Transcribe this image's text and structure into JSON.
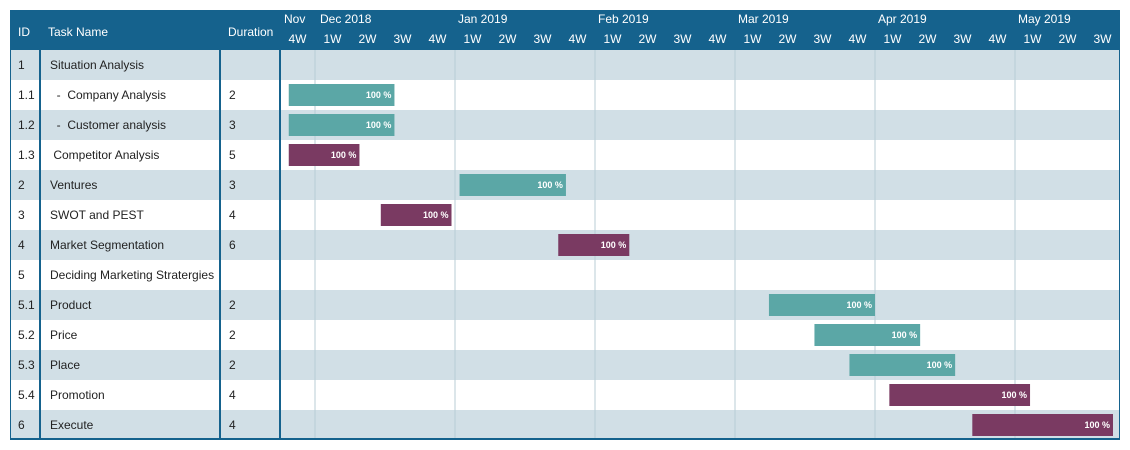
{
  "chart_data": {
    "type": "gantt",
    "columns": {
      "id": "ID",
      "task": "Task Name",
      "duration": "Duration"
    },
    "months": [
      "Nov",
      "Dec 2018",
      "Jan 2019",
      "Feb 2019",
      "Mar 2019",
      "Apr 2019",
      "May 2019"
    ],
    "week_labels": [
      "4W",
      "1W",
      "2W",
      "3W",
      "4W",
      "1W",
      "2W",
      "3W",
      "4W",
      "1W",
      "2W",
      "3W",
      "4W",
      "1W",
      "2W",
      "3W",
      "4W",
      "1W",
      "2W",
      "3W",
      "4W",
      "1W",
      "2W",
      "3W"
    ],
    "tasks": [
      {
        "id": "1",
        "name": "Situation Analysis",
        "duration": "",
        "start": null,
        "end": null,
        "label": "",
        "color": null
      },
      {
        "id": "1.1",
        "name": "  -  Company Analysis",
        "duration": "2",
        "start": 0.25,
        "end": 3.27,
        "label": "100 %",
        "color": "#5ba7a6"
      },
      {
        "id": "1.2",
        "name": "  -  Customer analysis",
        "duration": "3",
        "start": 0.25,
        "end": 3.27,
        "label": "100 %",
        "color": "#5ba7a6"
      },
      {
        "id": "1.3",
        "name": " Competitor Analysis",
        "duration": "5",
        "start": 0.25,
        "end": 2.27,
        "label": "100 %",
        "color": "#7a3a62"
      },
      {
        "id": "2",
        "name": "Ventures",
        "duration": "3",
        "start": 5.13,
        "end": 8.17,
        "label": "100 %",
        "color": "#5ba7a6"
      },
      {
        "id": "3",
        "name": "SWOT and PEST",
        "duration": "4",
        "start": 2.88,
        "end": 4.9,
        "label": "100 %",
        "color": "#7a3a62"
      },
      {
        "id": "4",
        "name": "Market Segmentation",
        "duration": "6",
        "start": 7.95,
        "end": 9.98,
        "label": "100 %",
        "color": "#7a3a62"
      },
      {
        "id": "5",
        "name": "Deciding Marketing Stratergies",
        "duration": "",
        "start": null,
        "end": null,
        "label": "",
        "color": null
      },
      {
        "id": "5.1",
        "name": "Product",
        "duration": "2",
        "start": 13.97,
        "end": 17.0,
        "label": "100 %",
        "color": "#5ba7a6"
      },
      {
        "id": "5.2",
        "name": "Price",
        "duration": "2",
        "start": 15.27,
        "end": 18.29,
        "label": "100 %",
        "color": "#5ba7a6"
      },
      {
        "id": "5.3",
        "name": "Place",
        "duration": "2",
        "start": 16.27,
        "end": 19.29,
        "label": "100 %",
        "color": "#5ba7a6"
      },
      {
        "id": "5.4",
        "name": "Promotion",
        "duration": "4",
        "start": 17.41,
        "end": 21.43,
        "label": "100 %",
        "color": "#7a3a62"
      },
      {
        "id": "6",
        "name": "Execute",
        "duration": "4",
        "start": 19.78,
        "end": 23.8,
        "label": "100 %",
        "color": "#7a3a62"
      }
    ],
    "colors": {
      "header": "#15628d",
      "row_stripe": "#d1dfe6",
      "row_plain": "#ffffff",
      "divider": "#15628d",
      "grid": "#b8ccd6",
      "completed_teal": "#5ba7a6",
      "completed_plum": "#7a3a62"
    }
  }
}
